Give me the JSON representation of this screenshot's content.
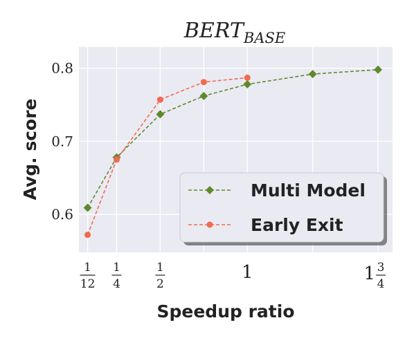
{
  "chart_data": {
    "type": "line",
    "title": {
      "main": "BERT",
      "sub": "BASE"
    },
    "xlabel": "Speedup ratio",
    "ylabel": "Avg. score",
    "grid": true,
    "legend_placement": "lower-right",
    "xlim": [
      0.0333,
      1.8333
    ],
    "ylim": [
      0.548,
      0.829
    ],
    "x_ticks": [
      {
        "value": 0.0833,
        "type": "frac",
        "num": "1",
        "den": "12"
      },
      {
        "value": 0.25,
        "type": "frac",
        "num": "1",
        "den": "4"
      },
      {
        "value": 0.5,
        "type": "frac",
        "num": "1",
        "den": "2"
      },
      {
        "value": 1.0,
        "type": "int",
        "text": "1"
      },
      {
        "value": 1.75,
        "type": "mixed",
        "whole": "1",
        "num": "3",
        "den": "4"
      }
    ],
    "y_ticks": [
      {
        "value": 0.6,
        "label": "0.6"
      },
      {
        "value": 0.7,
        "label": "0.7"
      },
      {
        "value": 0.8,
        "label": "0.8"
      }
    ],
    "extra_gridlines_x": [
      0.75,
      1.375
    ],
    "series": [
      {
        "name": "Multi Model",
        "color": "#5e8a2c",
        "marker": "diamond",
        "x": [
          0.0833,
          0.25,
          0.5,
          0.75,
          1.0,
          1.375,
          1.75
        ],
        "y": [
          0.609,
          0.678,
          0.737,
          0.762,
          0.778,
          0.792,
          0.798
        ]
      },
      {
        "name": "Early Exit",
        "color": "#f26a4f",
        "marker": "circle",
        "x": [
          0.0833,
          0.25,
          0.5,
          0.75,
          1.0
        ],
        "y": [
          0.572,
          0.675,
          0.757,
          0.781,
          0.787
        ]
      }
    ],
    "colors": {
      "plot_bg": "#eaeaf2",
      "grid": "#ffffff",
      "text": "#222222"
    }
  }
}
